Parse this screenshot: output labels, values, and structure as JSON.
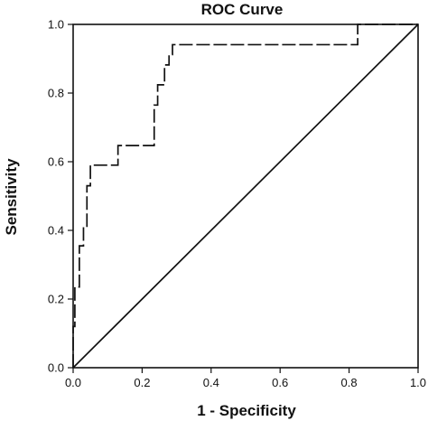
{
  "chart_data": {
    "type": "line",
    "title": "ROC Curve",
    "xlabel": "1 - Specificity",
    "ylabel": "Sensitivity",
    "xlim": [
      0,
      1
    ],
    "ylim": [
      0,
      1
    ],
    "x_ticks": [
      "0.0",
      "0.2",
      "0.4",
      "0.6",
      "0.8",
      "1.0"
    ],
    "y_ticks": [
      "0.0",
      "0.2",
      "0.4",
      "0.6",
      "0.8",
      "1.0"
    ],
    "grid": false,
    "legend": "none",
    "series": [
      {
        "style": "dashed",
        "color": "#111111",
        "x": [
          0.0,
          0.0,
          0.005,
          0.005,
          0.018,
          0.018,
          0.03,
          0.03,
          0.04,
          0.04,
          0.05,
          0.05,
          0.06,
          0.06,
          0.13,
          0.13,
          0.235,
          0.235,
          0.245,
          0.245,
          0.265,
          0.265,
          0.278,
          0.278,
          0.288,
          0.288,
          0.825,
          0.825,
          1.0
        ],
        "y": [
          0.0,
          0.12,
          0.12,
          0.235,
          0.235,
          0.355,
          0.355,
          0.412,
          0.412,
          0.53,
          0.53,
          0.59,
          0.59,
          0.59,
          0.59,
          0.647,
          0.647,
          0.765,
          0.765,
          0.824,
          0.824,
          0.882,
          0.882,
          0.912,
          0.912,
          0.941,
          0.941,
          1.0,
          1.0
        ]
      },
      {
        "style": "solid",
        "color": "#111111",
        "x": [
          0,
          1
        ],
        "y": [
          0,
          1
        ]
      }
    ]
  }
}
